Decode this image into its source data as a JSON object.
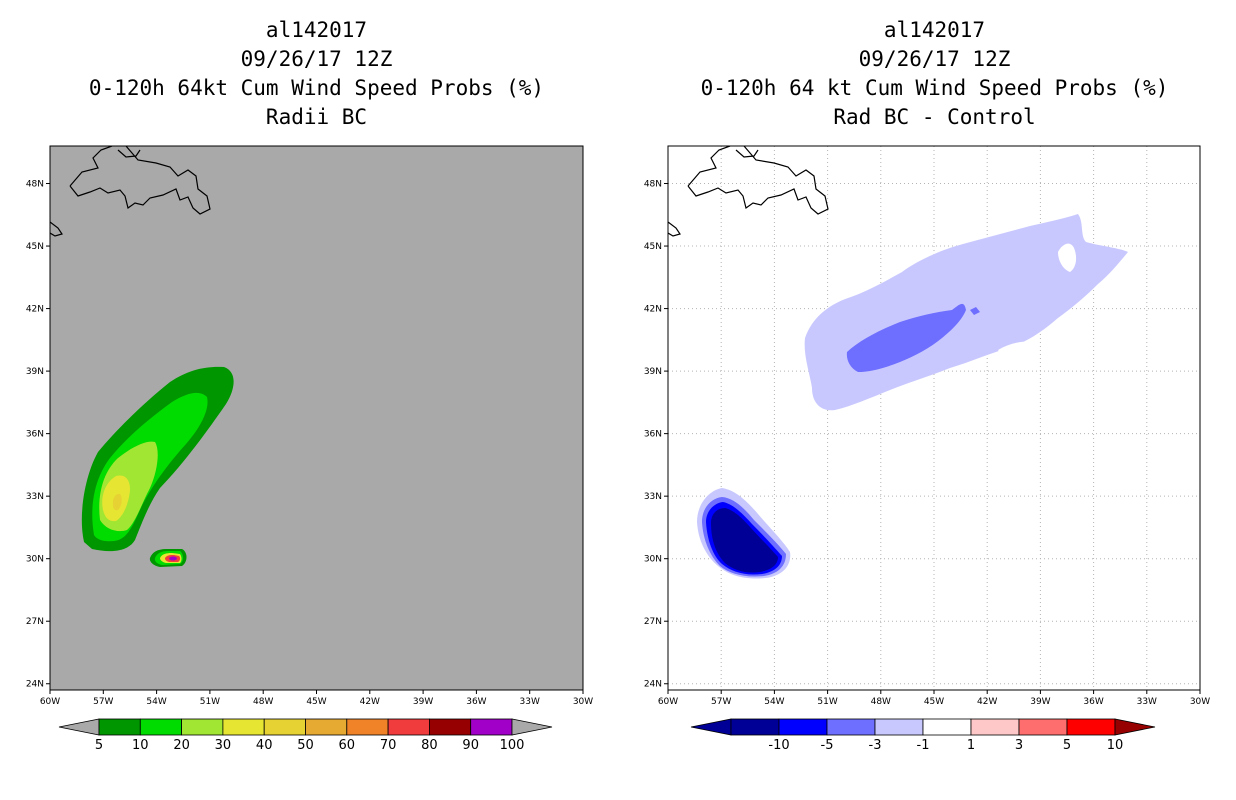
{
  "panels": {
    "left": {
      "storm_id": "al142017",
      "datetime": "09/26/17 12Z",
      "product": "0-120h 64kt Cum Wind Speed Probs (%)",
      "subtitle": "Radii BC",
      "background_color": "#a9a9a9",
      "colorbar_labels": [
        "5",
        "10",
        "20",
        "30",
        "40",
        "50",
        "60",
        "70",
        "80",
        "90",
        "100"
      ],
      "colorbar_colors": [
        "#009600",
        "#00dc00",
        "#a0e632",
        "#e6e632",
        "#e6d232",
        "#e6aa32",
        "#f08228",
        "#f03c3c",
        "#960000",
        "#a000c8"
      ]
    },
    "right": {
      "storm_id": "al142017",
      "datetime": "09/26/17 12Z",
      "product": "0-120h 64 kt Cum Wind Speed Probs (%)",
      "subtitle": "Rad BC - Control",
      "background_color": "#ffffff",
      "colorbar_labels": [
        "-10",
        "-5",
        "-3",
        "-1",
        "1",
        "3",
        "5",
        "10"
      ],
      "colorbar_colors": [
        "#000096",
        "#0000ff",
        "#6e6eff",
        "#c8c8ff",
        "#ffffff",
        "#ffc8c8",
        "#ff6e6e",
        "#ff0000"
      ]
    }
  },
  "axes": {
    "x_ticks": [
      "60W",
      "57W",
      "54W",
      "51W",
      "48W",
      "45W",
      "42W",
      "39W",
      "36W",
      "33W",
      "30W"
    ],
    "y_ticks": [
      "48N",
      "45N",
      "42N",
      "39N",
      "36N",
      "33N",
      "30N",
      "27N",
      "24N"
    ],
    "lon_range": [
      -60,
      -30
    ],
    "lat_range": [
      23.7,
      49.8
    ]
  },
  "map_data": {
    "left_contours": [
      {
        "level": "5-10%",
        "color": "#009600",
        "region": "elongated band from ~38.8N 50W to ~31N 58W"
      },
      {
        "level": "10-20%",
        "color": "#00dc00",
        "region": "inner band"
      },
      {
        "level": "20-30%",
        "color": "#a0e632",
        "region": "33-35N 56-58W"
      },
      {
        "level": "30-40%",
        "color": "#e6e632",
        "region": "~33N 57W"
      },
      {
        "level": "high",
        "color": "#a000c8",
        "region": "small spot ~30N 54W"
      }
    ],
    "right_contours": [
      {
        "level": "-3 to -1",
        "color": "#c8c8ff",
        "region": "broad area 37-45N 31-53W"
      },
      {
        "level": "-5 to -3",
        "color": "#6e6eff",
        "region": "39.5-42N 43-49W"
      },
      {
        "level": "<-10",
        "color": "#000096",
        "region": "29-32.5N 54-58W"
      }
    ]
  }
}
